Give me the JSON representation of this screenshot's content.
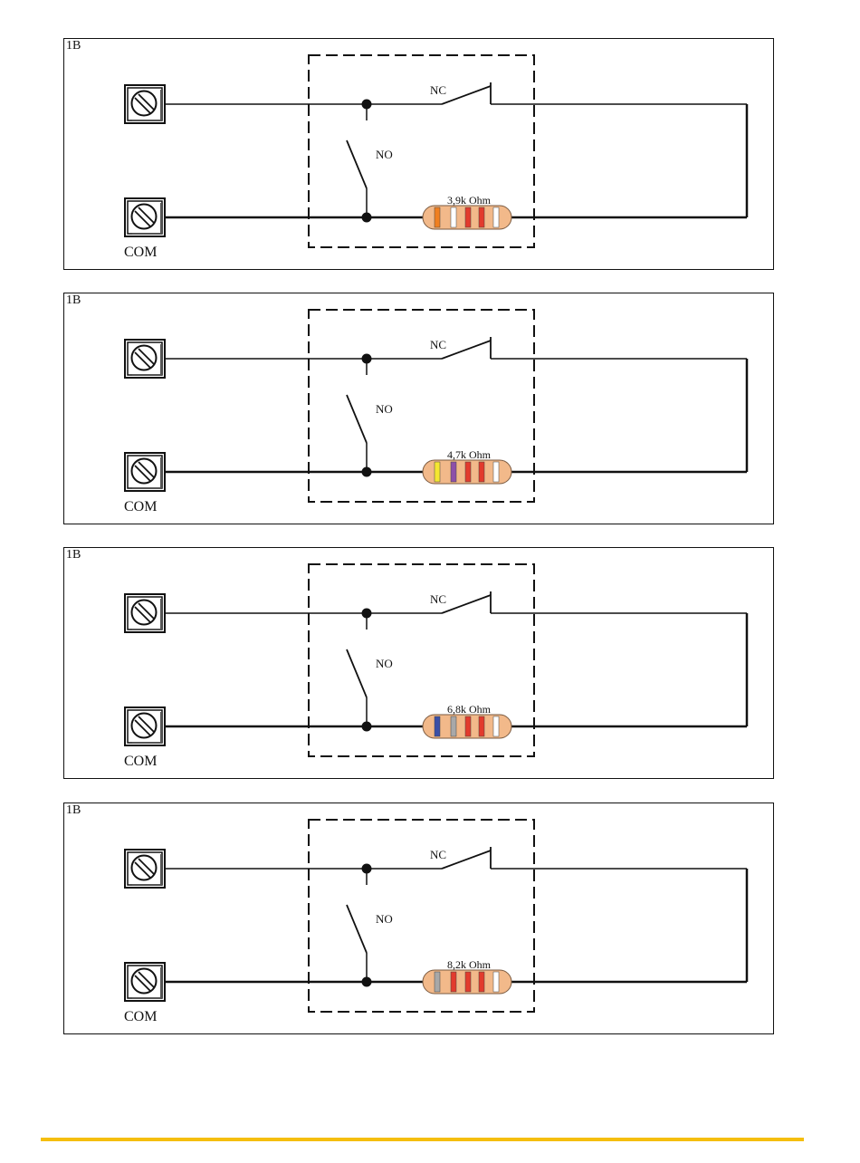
{
  "diagrams": [
    {
      "panel_label": "1B",
      "nc_label": "NC",
      "no_label": "NO",
      "com_label": "COM",
      "resistor_label": "3,9k Ohm",
      "resistor_bands": [
        "#f07f20",
        "#ffffff",
        "#e23b2d",
        "#e23b2d",
        "#ffffff"
      ]
    },
    {
      "panel_label": "1B",
      "nc_label": "NC",
      "no_label": "NO",
      "com_label": "COM",
      "resistor_label": "4,7k Ohm",
      "resistor_bands": [
        "#f5e631",
        "#8e4fa8",
        "#e23b2d",
        "#e23b2d",
        "#ffffff"
      ]
    },
    {
      "panel_label": "1B",
      "nc_label": "NC",
      "no_label": "NO",
      "com_label": "COM",
      "resistor_label": "6,8k Ohm",
      "resistor_bands": [
        "#3a4fa6",
        "#a8a8a8",
        "#e23b2d",
        "#e23b2d",
        "#ffffff"
      ]
    },
    {
      "panel_label": "1B",
      "nc_label": "NC",
      "no_label": "NO",
      "com_label": "COM",
      "resistor_label": "8,2k Ohm",
      "resistor_bands": [
        "#a8a8a8",
        "#e23b2d",
        "#e23b2d",
        "#e23b2d",
        "#ffffff"
      ]
    }
  ],
  "colors": {
    "resistor_body": "#f2b98a",
    "wire": "#111111",
    "footer_line": "#f5be0e"
  }
}
